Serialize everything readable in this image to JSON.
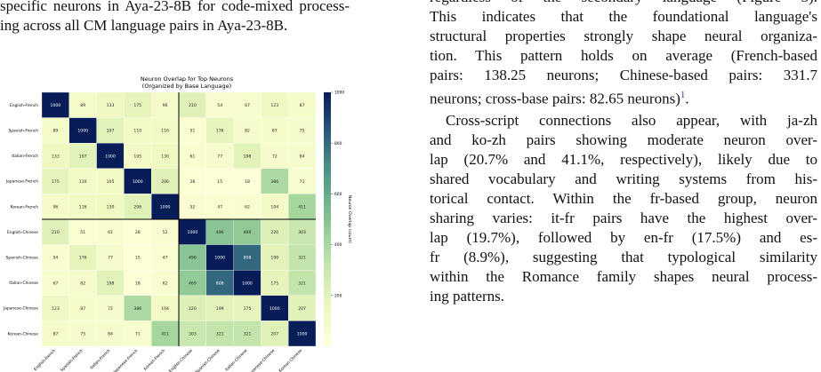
{
  "left_text": {
    "lines": [
      "specific neurons in Aya-23-8B for code-mixed process-",
      "ing across all CM language pairs in Aya-23-8B."
    ]
  },
  "right_text": {
    "paragraphs": [
      {
        "lines": [
          "regardless of the secondary language (Figure 3).",
          "This indicates that the foundational language's",
          "structural properties strongly shape neural organiza-",
          "tion. This pattern holds on average (French-based",
          "pairs: 138.25 neurons; Chinese-based pairs: 331.7"
        ],
        "last_line": {
          "text": "neurons; cross-base pairs: 82.65 neurons)",
          "footnote": "1",
          "end": "."
        }
      },
      {
        "lines": [
          "Cross-script connections also appear, with ja-zh",
          "and ko-zh pairs showing moderate neuron over-",
          "lap (20.7% and 41.1%, respectively), likely due to",
          "shared vocabulary and writing systems from his-",
          "torical contact. Within the fr-based group, neuron",
          "sharing varies: it-fr pairs have the highest over-",
          "lap (19.7%), followed by en-fr (17.5%) and es-",
          "fr (8.9%), suggesting that typological similarity",
          "within the Romance family shapes neural process-"
        ],
        "last_line": {
          "text": "ing patterns."
        }
      }
    ]
  },
  "chart_data": {
    "type": "heatmap",
    "title": "Neuron Overlap for Top Neurons",
    "subtitle": "(Organized by Base Language)",
    "categories": [
      "English-French",
      "Spanish-French",
      "Italian-French",
      "Japanese-French",
      "Korean-French",
      "English-Chinese",
      "Spanish-Chinese",
      "Italian-Chinese",
      "Japanese-Chinese",
      "Korean-Chinese"
    ],
    "values": [
      [
        1000,
        89,
        133,
        175,
        96,
        210,
        54,
        67,
        123,
        87
      ],
      [
        89,
        1000,
        197,
        110,
        116,
        51,
        176,
        82,
        87,
        75
      ],
      [
        133,
        197,
        1000,
        105,
        130,
        61,
        77,
        198,
        72,
        84
      ],
      [
        175,
        110,
        105,
        1000,
        206,
        28,
        15,
        18,
        386,
        71
      ],
      [
        96,
        116,
        130,
        206,
        1000,
        52,
        47,
        62,
        104,
        411
      ],
      [
        210,
        51,
        61,
        28,
        52,
        1000,
        496,
        469,
        220,
        303
      ],
      [
        54,
        176,
        77,
        15,
        47,
        496,
        1000,
        808,
        199,
        321
      ],
      [
        67,
        82,
        198,
        18,
        62,
        469,
        808,
        1000,
        175,
        321
      ],
      [
        123,
        87,
        72,
        386,
        104,
        220,
        199,
        175,
        1000,
        207
      ],
      [
        87,
        75,
        84,
        71,
        411,
        303,
        321,
        321,
        207,
        1000
      ]
    ],
    "zlim": [
      0,
      1000
    ],
    "zticks": [
      200,
      400,
      600,
      800,
      1000
    ],
    "zlabel": "Neuron Overlap (count)",
    "colors": [
      "#ffffd9",
      "#eef8bf",
      "#cfeab0",
      "#9fd39c",
      "#6fb38c",
      "#4a8a85",
      "#25547a",
      "#081d58"
    ],
    "separator_after": 5
  }
}
